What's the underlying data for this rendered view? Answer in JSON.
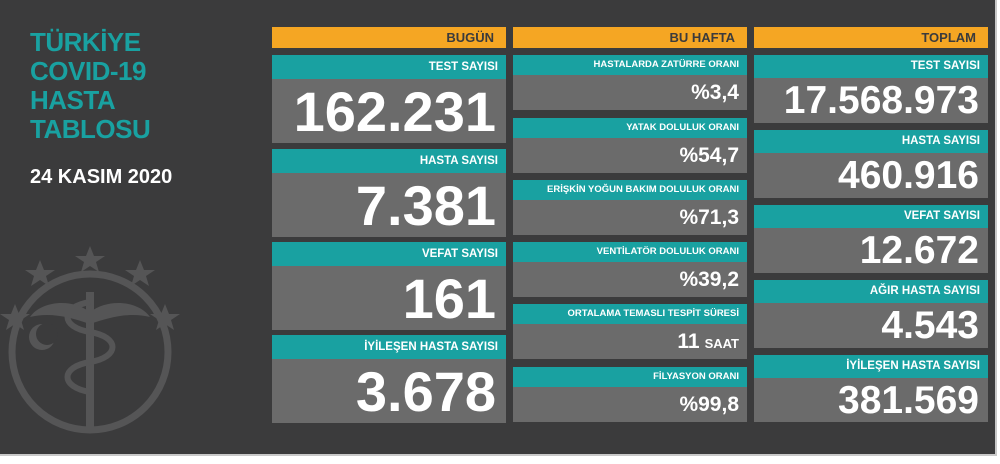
{
  "title_lines": [
    "TÜRKİYE",
    "COVID-19",
    "HASTA",
    "TABLOSU"
  ],
  "date": "24 KASIM 2020",
  "colors": {
    "background": "#3b3b3c",
    "teal": "#19a1a1",
    "orange": "#f5a623",
    "value_box": "#6b6b6b"
  },
  "emblem": "health-ministry-emblem-watermark",
  "today": {
    "header": "BUGÜN",
    "items": [
      {
        "label": "TEST SAYISI",
        "value": "162.231"
      },
      {
        "label": "HASTA SAYISI",
        "value": "7.381"
      },
      {
        "label": "VEFAT SAYISI",
        "value": "161"
      },
      {
        "label": "İYİLEŞEN HASTA SAYISI",
        "value": "3.678"
      }
    ]
  },
  "week": {
    "header": "BU HAFTA",
    "items": [
      {
        "label": "HASTALARDA ZATÜRRE ORANI",
        "value": "%3,4",
        "unit": ""
      },
      {
        "label": "YATAK DOLULUK ORANI",
        "value": "%54,7",
        "unit": ""
      },
      {
        "label": "ERİŞKİN YOĞUN BAKIM DOLULUK ORANI",
        "value": "%71,3",
        "unit": ""
      },
      {
        "label": "VENTİLATÖR DOLULUK ORANI",
        "value": "%39,2",
        "unit": ""
      },
      {
        "label": "ORTALAMA TEMASLI TESPİT SÜRESİ",
        "value": "11",
        "unit": "SAAT"
      },
      {
        "label": "FİLYASYON ORANI",
        "value": "%99,8",
        "unit": ""
      }
    ]
  },
  "total": {
    "header": "TOPLAM",
    "items": [
      {
        "label": "TEST SAYISI",
        "value": "17.568.973"
      },
      {
        "label": "HASTA SAYISI",
        "value": "460.916"
      },
      {
        "label": "VEFAT SAYISI",
        "value": "12.672"
      },
      {
        "label": "AĞIR HASTA SAYISI",
        "value": "4.543"
      },
      {
        "label": "İYİLEŞEN HASTA SAYISI",
        "value": "381.569"
      }
    ]
  }
}
